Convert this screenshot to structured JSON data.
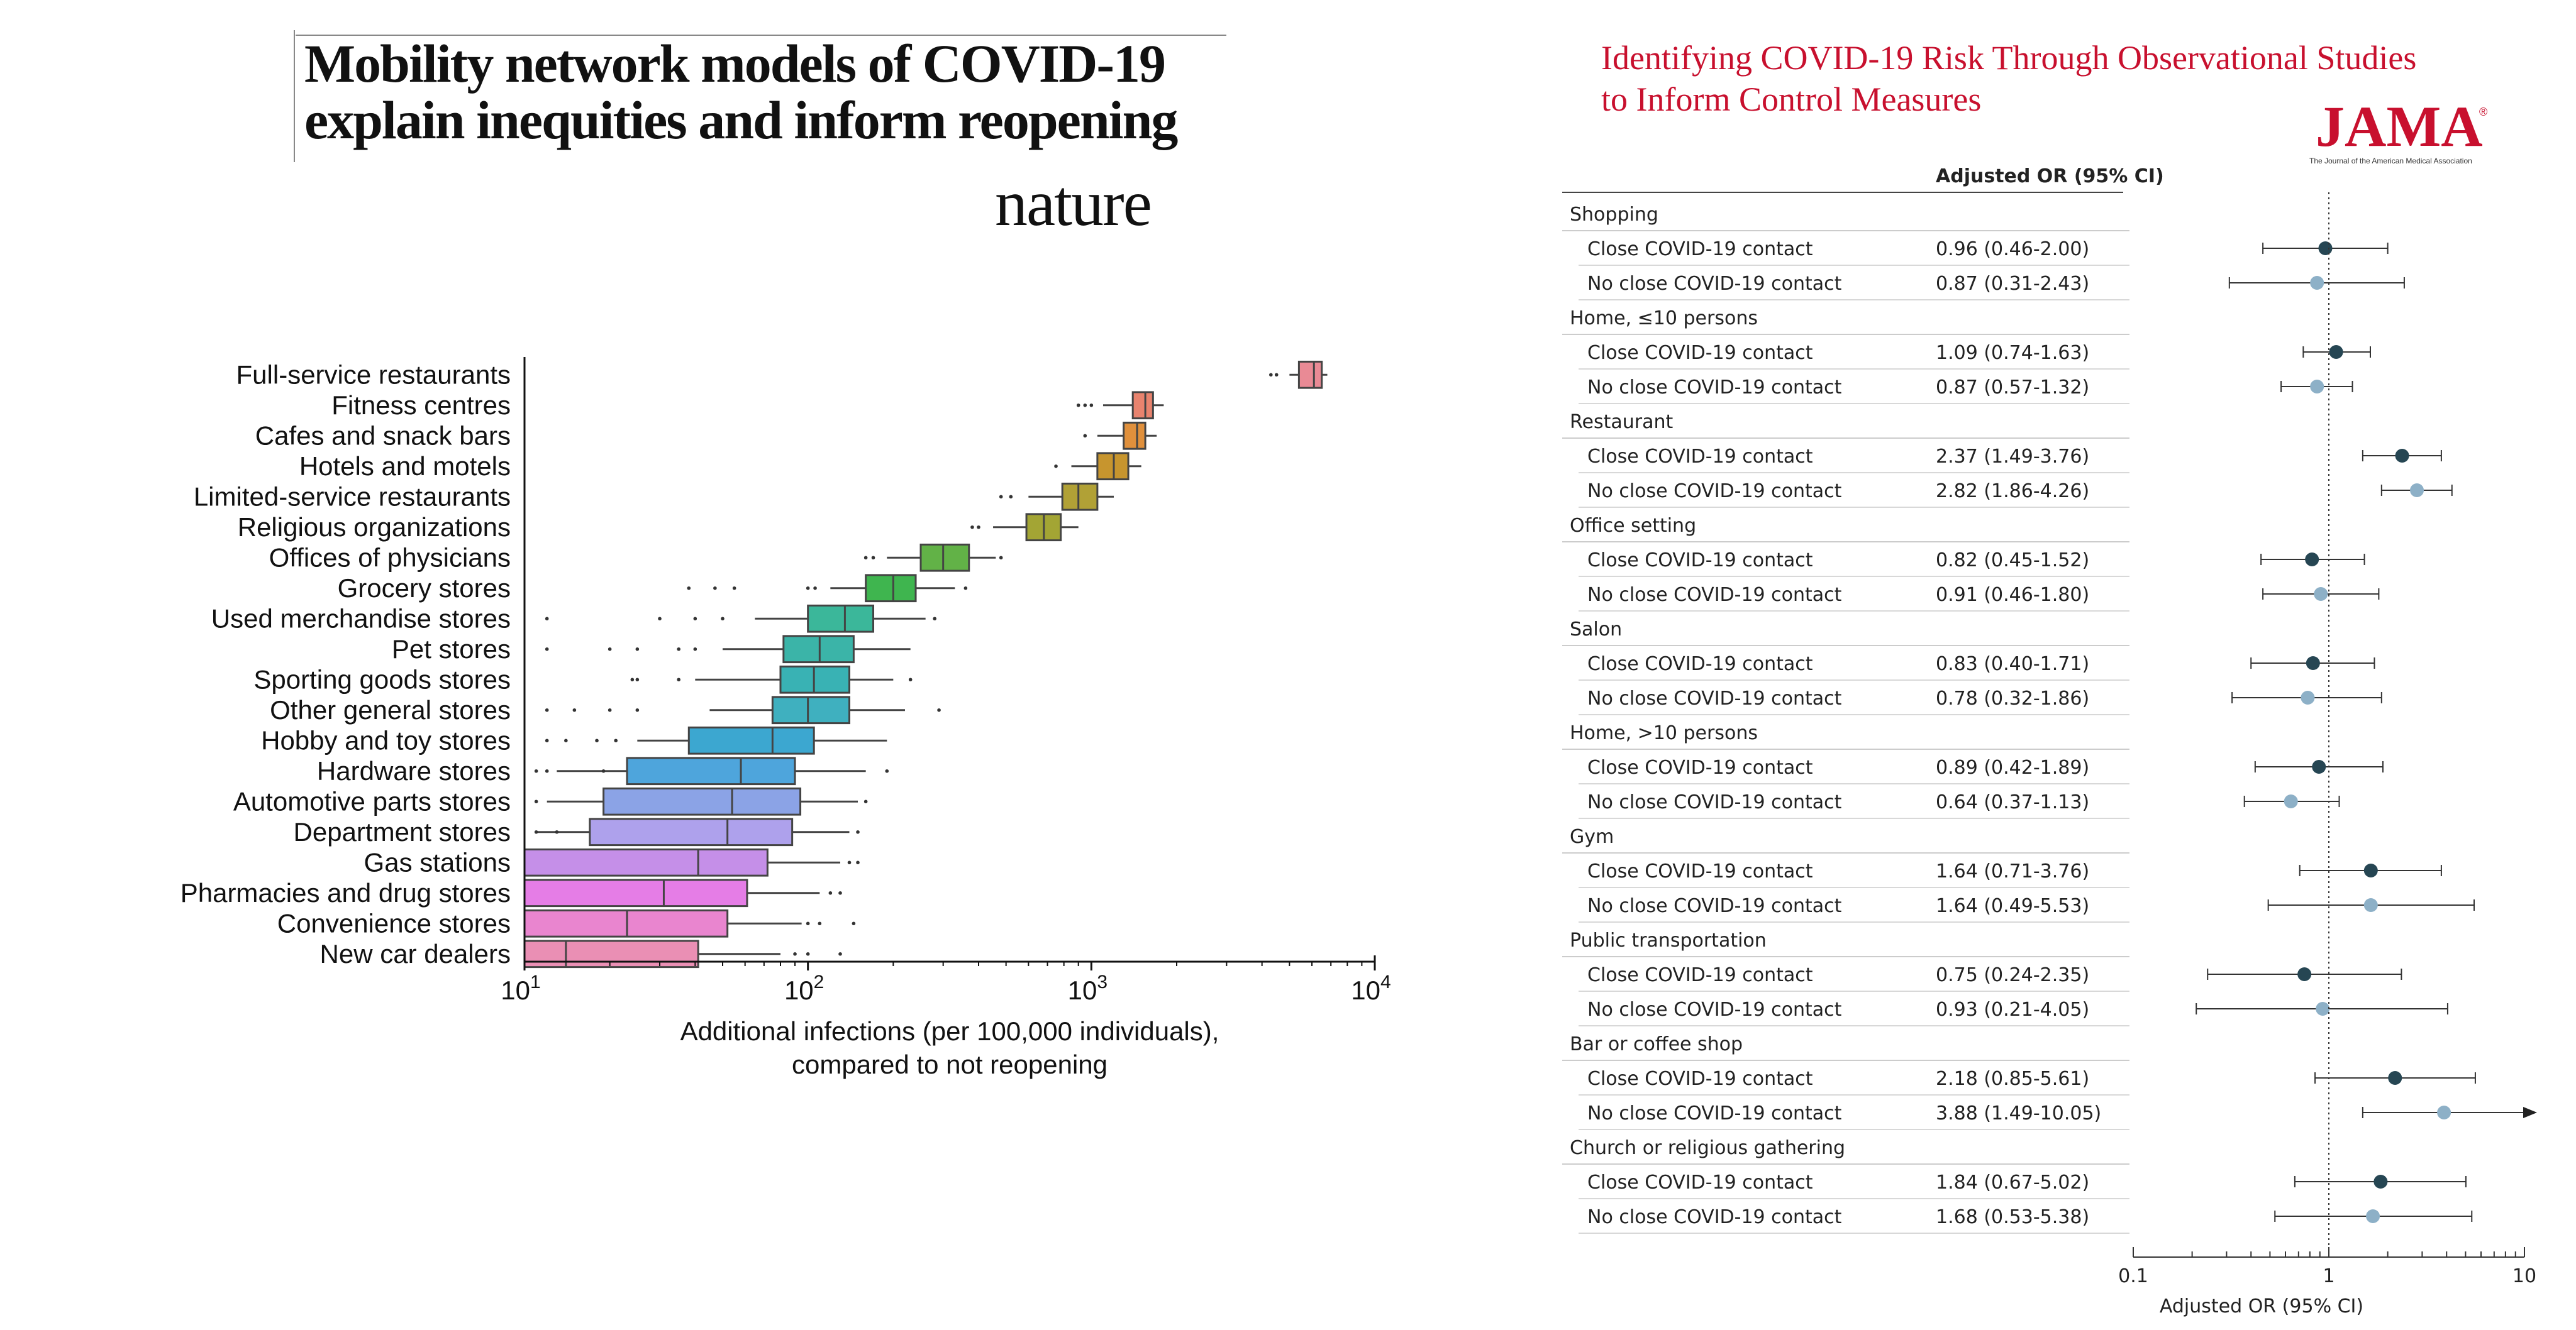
{
  "nature": {
    "title_line1": "Mobility network models of COVID-19",
    "title_line2": "explain inequities and inform reopening",
    "journal": "nature"
  },
  "jama": {
    "title_line1": "Identifying COVID-19 Risk Through Observational Studies",
    "title_line2": "to Inform Control Measures",
    "logo": "JAMA",
    "logo_sub": "The Journal of the American Medical Association"
  },
  "chart_data": [
    {
      "type": "boxplot",
      "x_scale": "log",
      "xlim": [
        10,
        10000
      ],
      "x_ticks": [
        {
          "value": 10,
          "base": "10",
          "exp": "1"
        },
        {
          "value": 100,
          "base": "10",
          "exp": "2"
        },
        {
          "value": 1000,
          "base": "10",
          "exp": "3"
        },
        {
          "value": 10000,
          "base": "10",
          "exp": "4"
        }
      ],
      "xlabel_line1": "Additional infections (per 100,000 individuals),",
      "xlabel_line2": "compared to not reopening",
      "categories": [
        {
          "name": "Full-service restaurants",
          "q1": 5400,
          "median": 6100,
          "q3": 6500,
          "min": 5000,
          "max": 6800,
          "color": "#e98a95",
          "outliers": [
            4300,
            4500
          ]
        },
        {
          "name": "Fitness centres",
          "q1": 1400,
          "median": 1550,
          "q3": 1650,
          "min": 1100,
          "max": 1800,
          "color": "#e8836e",
          "outliers": [
            900,
            950,
            1000
          ]
        },
        {
          "name": "Cafes and snack bars",
          "q1": 1300,
          "median": 1450,
          "q3": 1550,
          "min": 1050,
          "max": 1700,
          "color": "#e0903c",
          "outliers": [
            950
          ]
        },
        {
          "name": "Hotels and motels",
          "q1": 1050,
          "median": 1200,
          "q3": 1350,
          "min": 850,
          "max": 1500,
          "color": "#c7952e",
          "outliers": [
            750
          ]
        },
        {
          "name": "Limited-service restaurants",
          "q1": 790,
          "median": 900,
          "q3": 1050,
          "min": 600,
          "max": 1200,
          "color": "#b1a136",
          "outliers": [
            480,
            520
          ]
        },
        {
          "name": "Religious organizations",
          "q1": 590,
          "median": 680,
          "q3": 780,
          "min": 450,
          "max": 900,
          "color": "#a3a534",
          "outliers": [
            380,
            400
          ]
        },
        {
          "name": "Offices of physicians",
          "q1": 250,
          "median": 300,
          "q3": 370,
          "min": 190,
          "max": 460,
          "color": "#62b247",
          "outliers": [
            160,
            170,
            480
          ]
        },
        {
          "name": "Grocery stores",
          "q1": 160,
          "median": 200,
          "q3": 240,
          "min": 120,
          "max": 330,
          "color": "#3fb54f",
          "outliers": [
            38,
            47,
            55,
            100,
            106,
            360
          ]
        },
        {
          "name": "Used merchandise stores",
          "q1": 100,
          "median": 135,
          "q3": 170,
          "min": 65,
          "max": 260,
          "color": "#3bb79a",
          "outliers": [
            12,
            30,
            40,
            50,
            280
          ]
        },
        {
          "name": "Pet stores",
          "q1": 82,
          "median": 110,
          "q3": 145,
          "min": 50,
          "max": 230,
          "color": "#3bb4a8",
          "outliers": [
            12,
            20,
            25,
            35,
            40
          ]
        },
        {
          "name": "Sporting goods stores",
          "q1": 80,
          "median": 105,
          "q3": 140,
          "min": 40,
          "max": 200,
          "color": "#39b2b4",
          "outliers": [
            24,
            25,
            35,
            230
          ]
        },
        {
          "name": "Other general stores",
          "q1": 75,
          "median": 100,
          "q3": 140,
          "min": 45,
          "max": 220,
          "color": "#3fb0bf",
          "outliers": [
            12,
            15,
            20,
            25,
            290
          ]
        },
        {
          "name": "Hobby and toy stores",
          "q1": 38,
          "median": 75,
          "q3": 105,
          "min": 25,
          "max": 190,
          "color": "#3ca7d0",
          "outliers": [
            12,
            14,
            18,
            21
          ]
        },
        {
          "name": "Hardware stores",
          "q1": 23,
          "median": 58,
          "q3": 90,
          "min": 13,
          "max": 160,
          "color": "#4ea5dc",
          "outliers": [
            11,
            12,
            19,
            190
          ]
        },
        {
          "name": "Automotive parts stores",
          "q1": 19,
          "median": 54,
          "q3": 94,
          "min": 12,
          "max": 150,
          "color": "#8ba3e6",
          "outliers": [
            11,
            160
          ]
        },
        {
          "name": "Department stores",
          "q1": 17,
          "median": 52,
          "q3": 88,
          "min": 11,
          "max": 140,
          "color": "#aea1ec",
          "outliers": [
            11,
            13,
            150
          ]
        },
        {
          "name": "Gas stations",
          "q1": 10,
          "median": 41,
          "q3": 72,
          "min": 10,
          "max": 130,
          "color": "#c58fe8",
          "outliers": [
            140,
            150
          ]
        },
        {
          "name": "Pharmacies and drug stores",
          "q1": 10,
          "median": 31,
          "q3": 61,
          "min": 10,
          "max": 110,
          "color": "#e57de6",
          "outliers": [
            120,
            130
          ]
        },
        {
          "name": "Convenience stores",
          "q1": 10,
          "median": 23,
          "q3": 52,
          "min": 10,
          "max": 95,
          "color": "#e985cf",
          "outliers": [
            100,
            110,
            145
          ]
        },
        {
          "name": "New car dealers",
          "q1": 10,
          "median": 14,
          "q3": 41,
          "min": 10,
          "max": 80,
          "color": "#ea8fb4",
          "outliers": [
            90,
            100,
            130
          ]
        }
      ]
    },
    {
      "type": "forest",
      "x_scale": "log",
      "xlim": [
        0.1,
        10
      ],
      "reference_line": 1,
      "x_ticks": [
        {
          "value": 0.1,
          "label": "0.1"
        },
        {
          "value": 1,
          "label": "1"
        },
        {
          "value": 10,
          "label": "10"
        }
      ],
      "xlabel": "Adjusted OR (95% CI)",
      "column_header": "Adjusted OR (95% CI)",
      "series_colors": {
        "close": "#264653",
        "no_close": "#8db0c7"
      },
      "groups": [
        {
          "name": "Shopping",
          "rows": [
            {
              "label": "Close COVID-19 contact",
              "ci_text": "0.96 (0.46-2.00)",
              "or": 0.96,
              "lo": 0.46,
              "hi": 2.0,
              "kind": "close"
            },
            {
              "label": "No close COVID-19 contact",
              "ci_text": "0.87 (0.31-2.43)",
              "or": 0.87,
              "lo": 0.31,
              "hi": 2.43,
              "kind": "no_close"
            }
          ]
        },
        {
          "name": "Home, ≤10 persons",
          "rows": [
            {
              "label": "Close COVID-19 contact",
              "ci_text": "1.09 (0.74-1.63)",
              "or": 1.09,
              "lo": 0.74,
              "hi": 1.63,
              "kind": "close"
            },
            {
              "label": "No close COVID-19 contact",
              "ci_text": "0.87 (0.57-1.32)",
              "or": 0.87,
              "lo": 0.57,
              "hi": 1.32,
              "kind": "no_close"
            }
          ]
        },
        {
          "name": "Restaurant",
          "rows": [
            {
              "label": "Close COVID-19 contact",
              "ci_text": "2.37 (1.49-3.76)",
              "or": 2.37,
              "lo": 1.49,
              "hi": 3.76,
              "kind": "close"
            },
            {
              "label": "No close COVID-19 contact",
              "ci_text": "2.82 (1.86-4.26)",
              "or": 2.82,
              "lo": 1.86,
              "hi": 4.26,
              "kind": "no_close"
            }
          ]
        },
        {
          "name": "Office setting",
          "rows": [
            {
              "label": "Close COVID-19 contact",
              "ci_text": "0.82 (0.45-1.52)",
              "or": 0.82,
              "lo": 0.45,
              "hi": 1.52,
              "kind": "close"
            },
            {
              "label": "No close COVID-19 contact",
              "ci_text": "0.91 (0.46-1.80)",
              "or": 0.91,
              "lo": 0.46,
              "hi": 1.8,
              "kind": "no_close"
            }
          ]
        },
        {
          "name": "Salon",
          "rows": [
            {
              "label": "Close COVID-19 contact",
              "ci_text": "0.83 (0.40-1.71)",
              "or": 0.83,
              "lo": 0.4,
              "hi": 1.71,
              "kind": "close"
            },
            {
              "label": "No close COVID-19 contact",
              "ci_text": "0.78 (0.32-1.86)",
              "or": 0.78,
              "lo": 0.32,
              "hi": 1.86,
              "kind": "no_close"
            }
          ]
        },
        {
          "name": "Home, >10 persons",
          "rows": [
            {
              "label": "Close COVID-19 contact",
              "ci_text": "0.89 (0.42-1.89)",
              "or": 0.89,
              "lo": 0.42,
              "hi": 1.89,
              "kind": "close"
            },
            {
              "label": "No close COVID-19 contact",
              "ci_text": "0.64 (0.37-1.13)",
              "or": 0.64,
              "lo": 0.37,
              "hi": 1.13,
              "kind": "no_close"
            }
          ]
        },
        {
          "name": "Gym",
          "rows": [
            {
              "label": "Close COVID-19 contact",
              "ci_text": "1.64 (0.71-3.76)",
              "or": 1.64,
              "lo": 0.71,
              "hi": 3.76,
              "kind": "close"
            },
            {
              "label": "No close COVID-19 contact",
              "ci_text": "1.64 (0.49-5.53)",
              "or": 1.64,
              "lo": 0.49,
              "hi": 5.53,
              "kind": "no_close"
            }
          ]
        },
        {
          "name": "Public transportation",
          "rows": [
            {
              "label": "Close COVID-19 contact",
              "ci_text": "0.75 (0.24-2.35)",
              "or": 0.75,
              "lo": 0.24,
              "hi": 2.35,
              "kind": "close"
            },
            {
              "label": "No close COVID-19 contact",
              "ci_text": "0.93 (0.21-4.05)",
              "or": 0.93,
              "lo": 0.21,
              "hi": 4.05,
              "kind": "no_close"
            }
          ]
        },
        {
          "name": "Bar or coffee shop",
          "rows": [
            {
              "label": "Close COVID-19 contact",
              "ci_text": "2.18 (0.85-5.61)",
              "or": 2.18,
              "lo": 0.85,
              "hi": 5.61,
              "kind": "close"
            },
            {
              "label": "No close COVID-19 contact",
              "ci_text": "3.88 (1.49-10.05)",
              "or": 3.88,
              "lo": 1.49,
              "hi": 10.05,
              "kind": "no_close"
            }
          ]
        },
        {
          "name": "Church or religious gathering",
          "rows": [
            {
              "label": "Close COVID-19 contact",
              "ci_text": "1.84 (0.67-5.02)",
              "or": 1.84,
              "lo": 0.67,
              "hi": 5.02,
              "kind": "close"
            },
            {
              "label": "No close COVID-19 contact",
              "ci_text": "1.68 (0.53-5.38)",
              "or": 1.68,
              "lo": 0.53,
              "hi": 5.38,
              "kind": "no_close"
            }
          ]
        }
      ]
    }
  ]
}
